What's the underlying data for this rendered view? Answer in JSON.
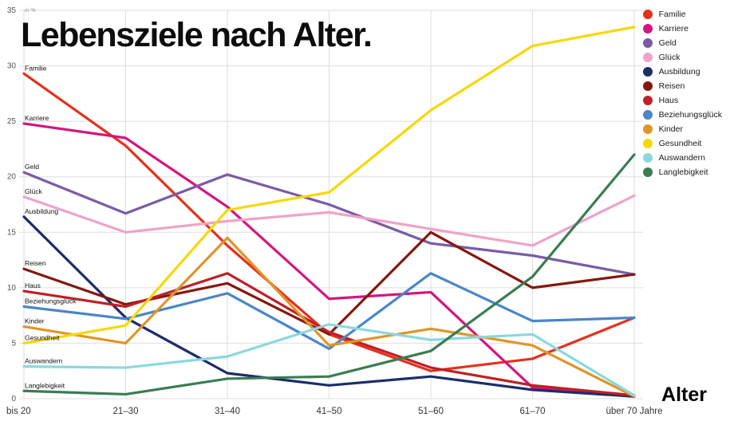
{
  "title": "Lebensziele nach Alter.",
  "chart_data": {
    "type": "line",
    "title": "Lebensziele nach Alter.",
    "xlabel": "Alter",
    "ylabel": "in %",
    "ylim": [
      0,
      35
    ],
    "yticks": [
      0,
      5,
      10,
      15,
      20,
      25,
      30,
      35
    ],
    "grid": true,
    "legend_position": "top-right",
    "categories": [
      "bis 20",
      "21–30",
      "31–40",
      "41–50",
      "51–60",
      "61–70",
      "über 70 Jahre"
    ],
    "series": [
      {
        "name": "Familie",
        "color": "#e5301d",
        "values": [
          29.3,
          22.8,
          13.8,
          5.8,
          2.5,
          3.6,
          7.3
        ]
      },
      {
        "name": "Karriere",
        "color": "#d4157e",
        "values": [
          24.8,
          23.5,
          17.3,
          9.0,
          9.6,
          1.0,
          0.2
        ]
      },
      {
        "name": "Geld",
        "color": "#7a5ba6",
        "values": [
          20.4,
          16.7,
          20.2,
          17.5,
          14.0,
          12.9,
          11.2
        ]
      },
      {
        "name": "Glück",
        "color": "#efa3c8",
        "values": [
          18.2,
          15.0,
          16.0,
          16.8,
          15.3,
          13.8,
          18.3
        ]
      },
      {
        "name": "Ausbildung",
        "color": "#1c2d69",
        "values": [
          16.4,
          7.3,
          2.3,
          1.2,
          2.0,
          0.8,
          0.2
        ]
      },
      {
        "name": "Reisen",
        "color": "#84180f",
        "values": [
          11.7,
          8.5,
          10.4,
          5.8,
          15.0,
          10.0,
          11.2
        ]
      },
      {
        "name": "Haus",
        "color": "#bf2026",
        "values": [
          9.7,
          8.3,
          11.3,
          6.0,
          2.8,
          1.2,
          0.3
        ]
      },
      {
        "name": "Beziehungsglück",
        "color": "#4a86c8",
        "values": [
          8.3,
          7.2,
          9.5,
          4.5,
          11.3,
          7.0,
          7.3
        ]
      },
      {
        "name": "Kinder",
        "color": "#e09526",
        "values": [
          6.5,
          5.0,
          14.5,
          4.8,
          6.3,
          4.8,
          0.2
        ]
      },
      {
        "name": "Gesundheit",
        "color": "#f6d806",
        "values": [
          5.0,
          6.6,
          17.0,
          18.6,
          26.0,
          31.8,
          33.5
        ]
      },
      {
        "name": "Auswandern",
        "color": "#8ad8de",
        "values": [
          2.9,
          2.8,
          3.8,
          6.7,
          5.3,
          5.8,
          0.3
        ]
      },
      {
        "name": "Langlebigkeit",
        "color": "#3a7d52",
        "values": [
          0.7,
          0.4,
          1.8,
          2.0,
          4.3,
          11.0,
          22.0
        ]
      }
    ]
  }
}
